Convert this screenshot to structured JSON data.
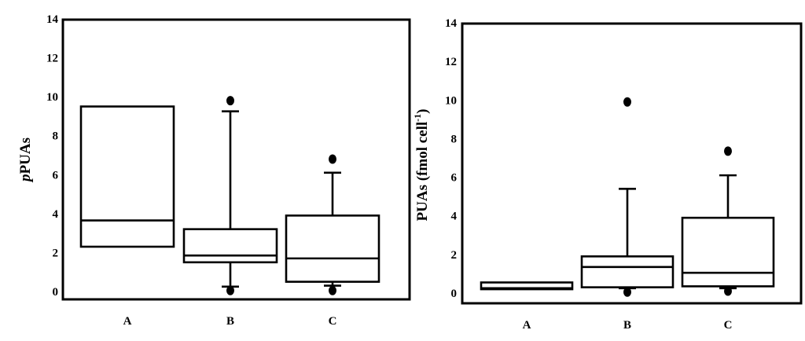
{
  "chart_data": [
    {
      "type": "box",
      "ylabel_italic_prefix": "p",
      "ylabel_main": "PUAs",
      "ylim": [
        0,
        14
      ],
      "yticks": [
        "0",
        "2",
        "4",
        "6",
        "8",
        "10",
        "12",
        "14"
      ],
      "categories": [
        "A",
        "B",
        "C"
      ],
      "boxes": [
        {
          "category": "A",
          "q1": 2.3,
          "median": 3.65,
          "q3": 9.5,
          "whisker_low": null,
          "whisker_high": null,
          "outliers": []
        },
        {
          "category": "B",
          "q1": 1.5,
          "median": 1.85,
          "q3": 3.2,
          "whisker_low": 0.25,
          "whisker_high": 9.25,
          "outliers": [
            0.05,
            9.8
          ]
        },
        {
          "category": "C",
          "q1": 0.5,
          "median": 1.7,
          "q3": 3.9,
          "whisker_low": 0.3,
          "whisker_high": 6.1,
          "outliers": [
            0.05,
            6.8
          ]
        }
      ]
    },
    {
      "type": "box",
      "ylabel_main": "PUAs (fmol cell",
      "ylabel_sup": "-1",
      "ylabel_close": ")",
      "ylim": [
        0,
        14
      ],
      "yticks": [
        "0",
        "2",
        "4",
        "6",
        "8",
        "10",
        "12",
        "14"
      ],
      "categories": [
        "A",
        "B",
        "C"
      ],
      "boxes": [
        {
          "category": "A",
          "q1": 0.2,
          "median": 0.25,
          "q3": 0.55,
          "whisker_low": null,
          "whisker_high": null,
          "outliers": []
        },
        {
          "category": "B",
          "q1": 0.3,
          "median": 1.35,
          "q3": 1.9,
          "whisker_low": 0.25,
          "whisker_high": 5.4,
          "outliers": [
            0.05,
            9.9
          ]
        },
        {
          "category": "C",
          "q1": 0.35,
          "median": 1.05,
          "q3": 3.9,
          "whisker_low": 0.25,
          "whisker_high": 6.1,
          "outliers": [
            0.1,
            7.35
          ]
        }
      ]
    }
  ]
}
